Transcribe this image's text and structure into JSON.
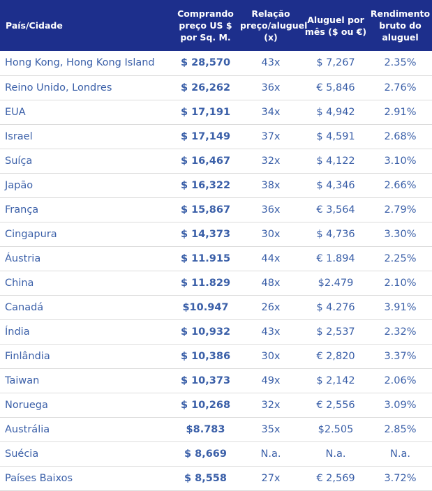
{
  "headers": {
    "country": "País/Cidade",
    "price": "Comprando preço US $ por Sq. M.",
    "ratio": "Relação preço/aluguel (x)",
    "rent": "Aluguel por mês ($ ou €)",
    "yield": "Rendimento bruto do aluguel"
  },
  "colors": {
    "header_bg": "#1d2f8c",
    "header_text": "#ffffff",
    "cell_text": "#3a5fa8"
  },
  "rows": [
    {
      "country": "Hong Kong, Hong Kong Island",
      "price": "$ 28,570",
      "ratio": "43x",
      "rent": "$ 7,267",
      "yield": "2.35%"
    },
    {
      "country": "Reino Unido, Londres",
      "price": "$ 26,262",
      "ratio": "36x",
      "rent": "€ 5,846",
      "yield": "2.76%"
    },
    {
      "country": "EUA",
      "price": "$ 17,191",
      "ratio": "34x",
      "rent": "$ 4,942",
      "yield": "2.91%"
    },
    {
      "country": "Israel",
      "price": "$ 17,149",
      "ratio": "37x",
      "rent": "$ 4,591",
      "yield": "2.68%"
    },
    {
      "country": "Suíça",
      "price": "$ 16,467",
      "ratio": "32x",
      "rent": "$ 4,122",
      "yield": "3.10%"
    },
    {
      "country": "Japão",
      "price": "$ 16,322",
      "ratio": "38x",
      "rent": "$ 4,346",
      "yield": "2.66%"
    },
    {
      "country": "França",
      "price": "$ 15,867",
      "ratio": "36x",
      "rent": "€ 3,564",
      "yield": "2.79%"
    },
    {
      "country": "Cingapura",
      "price": "$ 14,373",
      "ratio": "30x",
      "rent": "$ 4,736",
      "yield": "3.30%"
    },
    {
      "country": "Áustria",
      "price": "$ 11.915",
      "ratio": "44x",
      "rent": "€ 1.894",
      "yield": "2.25%"
    },
    {
      "country": "China",
      "price": "$ 11.829",
      "ratio": "48x",
      "rent": "$2.479",
      "yield": "2.10%"
    },
    {
      "country": "Canadá",
      "price": "$10.947",
      "ratio": "26x",
      "rent": "$ 4.276",
      "yield": "3.91%"
    },
    {
      "country": "Índia",
      "price": "$ 10,932",
      "ratio": "43x",
      "rent": "$ 2,537",
      "yield": "2.32%"
    },
    {
      "country": "Finlândia",
      "price": "$ 10,386",
      "ratio": "30x",
      "rent": "€ 2,820",
      "yield": "3.37%"
    },
    {
      "country": "Taiwan",
      "price": "$ 10,373",
      "ratio": "49x",
      "rent": "$ 2,142",
      "yield": "2.06%"
    },
    {
      "country": "Noruega",
      "price": "$ 10,268",
      "ratio": "32x",
      "rent": "€ 2,556",
      "yield": "3.09%"
    },
    {
      "country": "Austrália",
      "price": "$8.783",
      "ratio": "35x",
      "rent": "$2.505",
      "yield": "2.85%"
    },
    {
      "country": "Suécia",
      "price": "$ 8,669",
      "ratio": "N.a.",
      "rent": "N.a.",
      "yield": "N.a."
    },
    {
      "country": "Países Baixos",
      "price": "$ 8,558",
      "ratio": "27x",
      "rent": "€ 2,569",
      "yield": "3.72%"
    }
  ]
}
